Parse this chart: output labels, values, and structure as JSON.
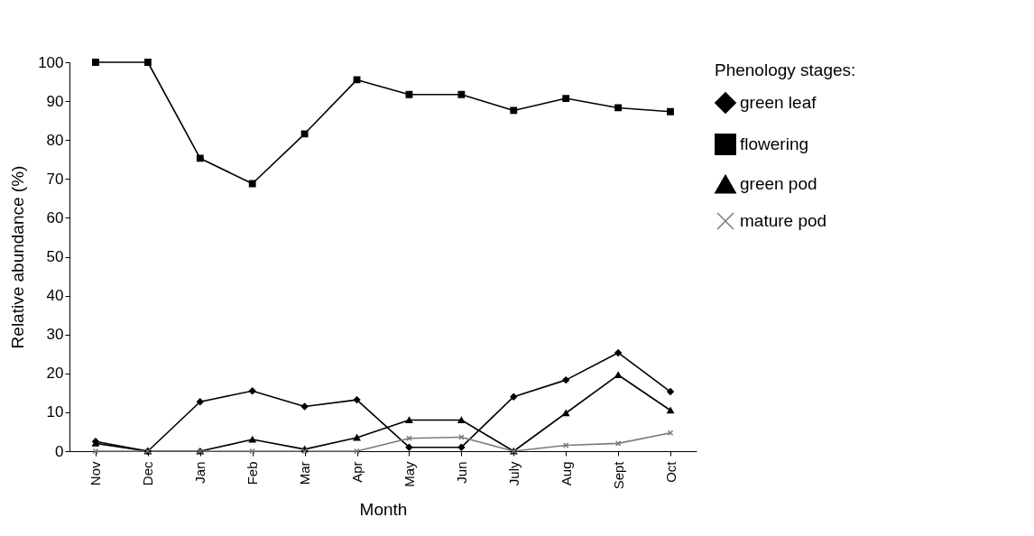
{
  "chart_data": {
    "type": "line",
    "xlabel": "Month",
    "ylabel": "Relative abundance (%)",
    "legend_title": "Phenology stages:",
    "legend": "top right",
    "grid": false,
    "line_style": "solid",
    "categories": [
      "Nov",
      "Dec",
      "Jan",
      "Feb",
      "Mar",
      "Apr",
      "May",
      "Jun",
      "July",
      "Aug",
      "Sept",
      "Oct"
    ],
    "ylim": [
      0,
      100
    ],
    "yticks": [
      0,
      10,
      20,
      30,
      40,
      50,
      60,
      70,
      80,
      90,
      100
    ],
    "series": [
      {
        "name": "green leaf",
        "color": "#000000",
        "marker": "diamond",
        "values": [
          2.5,
          0,
          12.7,
          15.5,
          11.5,
          13.2,
          1,
          1,
          14,
          18.3,
          25.3,
          15.3
        ]
      },
      {
        "name": "flowering",
        "color": "#000000",
        "marker": "square",
        "values": [
          100,
          100,
          75.3,
          68.8,
          81.6,
          95.5,
          91.7,
          91.7,
          87.6,
          90.7,
          88.3,
          87.3
        ]
      },
      {
        "name": "green pod",
        "color": "#000000",
        "marker": "triangle",
        "values": [
          2,
          0,
          0,
          3,
          0.5,
          3.5,
          8,
          8,
          0,
          9.8,
          19.6,
          10.5
        ]
      },
      {
        "name": "mature pod",
        "color": "#7a7a7a",
        "marker": "cross",
        "values": [
          0,
          0,
          0,
          0,
          0,
          0,
          3.3,
          3.6,
          0,
          1.5,
          2,
          4.7
        ]
      }
    ]
  }
}
